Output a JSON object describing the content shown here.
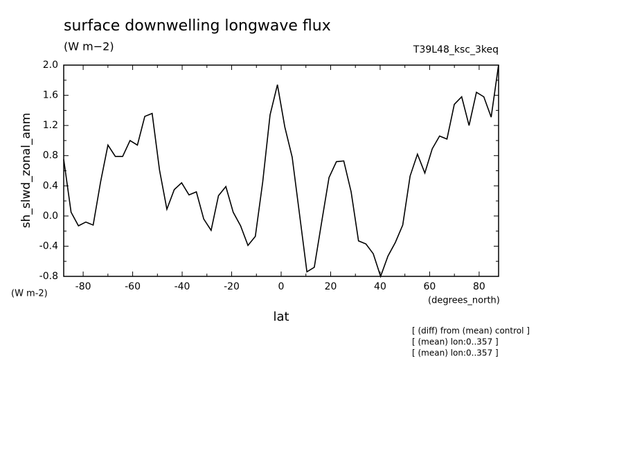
{
  "chart_data": {
    "type": "line",
    "title": "surface downwelling longwave flux",
    "units": "(W m−2)",
    "subtitle": "T39L48_ksc_3keq",
    "y_label": "sh_slwd_zonal_anm",
    "y_units": "(W m-2)",
    "x_label": "lat",
    "x_units": "(degrees_north)",
    "notes": [
      "[ (diff) from (mean) control ]",
      "[ (mean) lon:0..357 ]",
      "[ (mean) lon:0..357 ]"
    ],
    "x": [
      -87.86,
      -84.88,
      -81.9,
      -78.93,
      -75.95,
      -72.97,
      -69.99,
      -67.01,
      -64.04,
      -61.06,
      -58.08,
      -55.1,
      -52.12,
      -49.15,
      -46.17,
      -43.19,
      -40.21,
      -37.23,
      -34.26,
      -31.28,
      -28.3,
      -25.32,
      -22.34,
      -19.37,
      -16.39,
      -13.41,
      -10.43,
      -7.45,
      -4.48,
      -1.5,
      1.48,
      4.46,
      7.44,
      10.41,
      13.39,
      16.37,
      19.35,
      22.33,
      25.3,
      28.28,
      31.26,
      34.24,
      37.22,
      40.19,
      43.17,
      46.15,
      49.13,
      52.11,
      55.08,
      58.06,
      61.04,
      64.02,
      67.0,
      69.97,
      72.95,
      75.93,
      78.91,
      81.89,
      84.86,
      87.84
    ],
    "series": [
      {
        "color": "#000000",
        "values": [
          0.75,
          0.05,
          -0.13,
          -0.08,
          -0.12,
          0.45,
          0.94,
          0.79,
          0.79,
          1.0,
          0.94,
          1.32,
          1.36,
          0.61,
          0.09,
          0.35,
          0.44,
          0.28,
          0.32,
          -0.04,
          -0.19,
          0.27,
          0.39,
          0.05,
          -0.13,
          -0.39,
          -0.27,
          0.45,
          1.34,
          1.74,
          1.18,
          0.78,
          0.02,
          -0.74,
          -0.68,
          -0.08,
          0.51,
          0.72,
          0.73,
          0.32,
          -0.33,
          -0.37,
          -0.5,
          -0.8,
          -0.53,
          -0.35,
          -0.12,
          0.53,
          0.82,
          0.57,
          0.89,
          1.06,
          1.02,
          1.48,
          1.58,
          1.2,
          1.64,
          1.58,
          1.31,
          2.0
        ]
      }
    ],
    "xlim": [
      -87.86,
      87.86
    ],
    "ylim": [
      -0.8,
      2.0
    ],
    "xticks": [
      -80,
      -60,
      -40,
      -20,
      0,
      20,
      40,
      60,
      80
    ],
    "xminorticks": [
      -70,
      -50,
      -30,
      -10,
      10,
      30,
      50,
      70
    ],
    "yticks": [
      {
        "value": 2.0,
        "label": "2.0"
      },
      1.6,
      1.2,
      0.8,
      0.4,
      {
        "value": 0,
        "label": "0.0"
      },
      -0.4,
      -0.8
    ],
    "yminorticks": [
      1.8,
      1.4,
      1.0,
      0.6,
      0.2,
      -0.2,
      -0.6
    ]
  }
}
